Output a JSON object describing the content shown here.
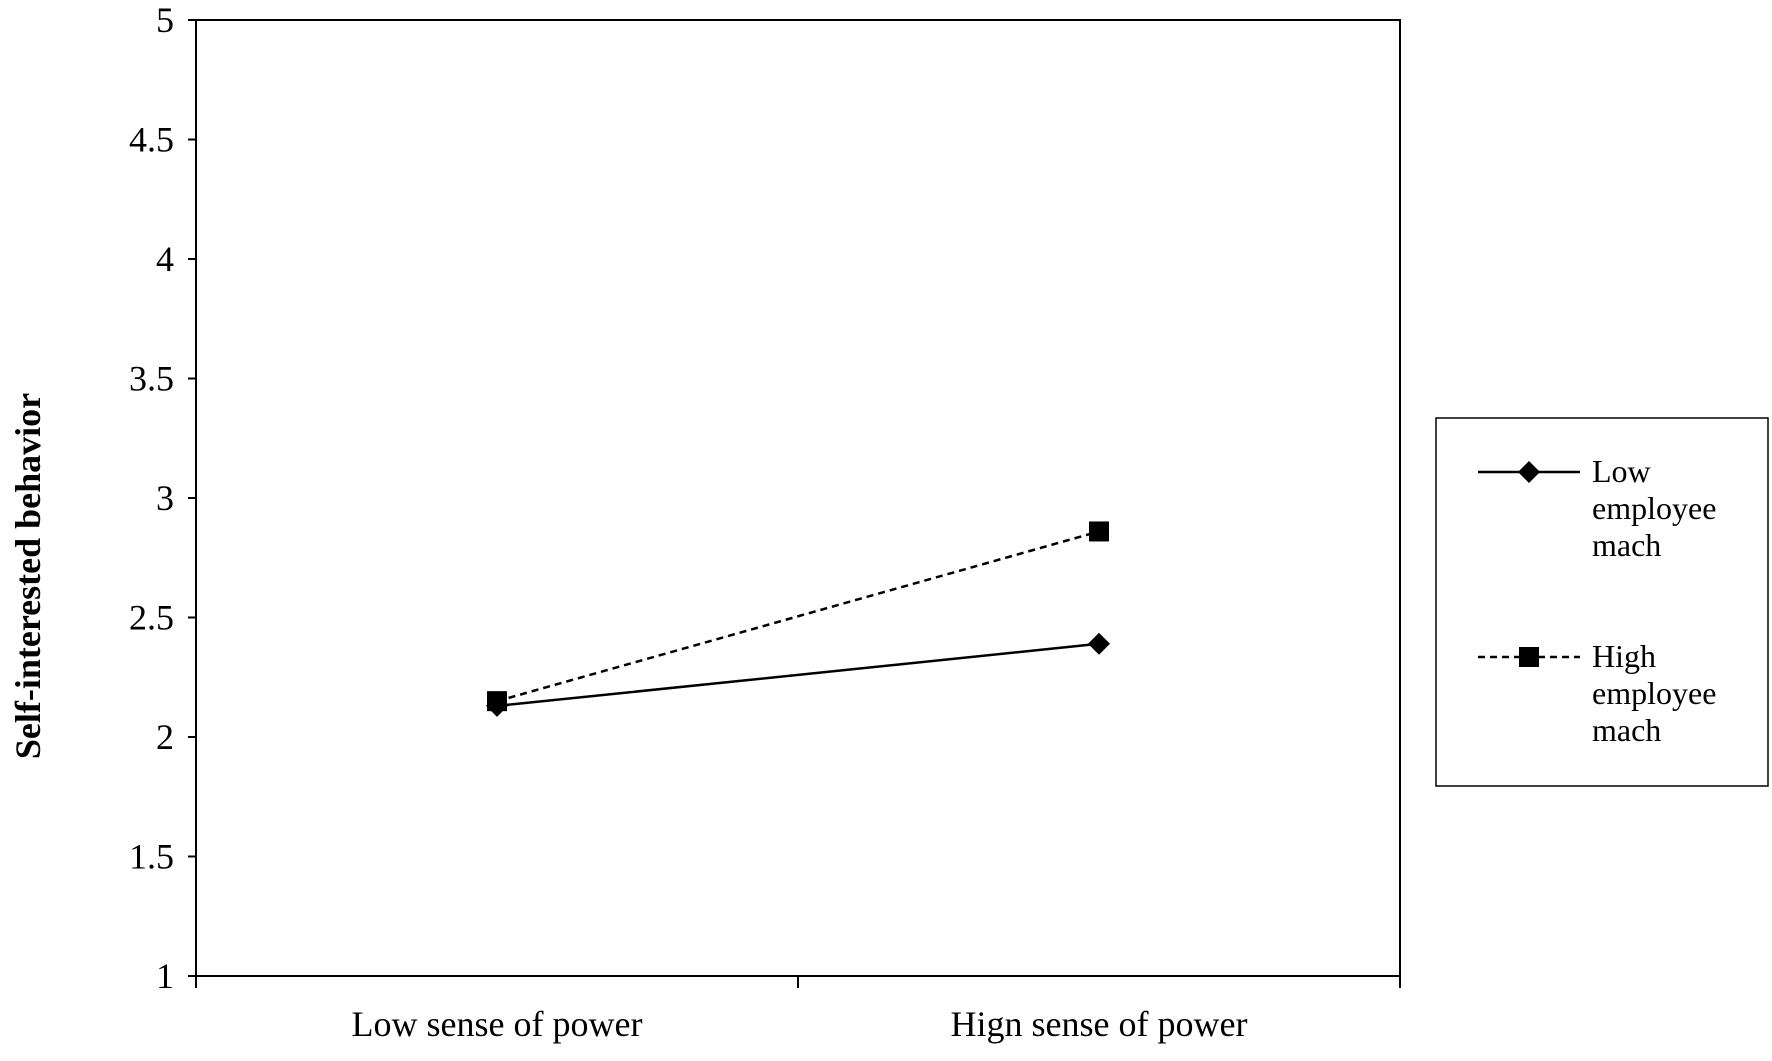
{
  "chart_data": {
    "type": "line",
    "title": "",
    "xlabel": "",
    "ylabel": "Self-interested  behavior",
    "categories": [
      "Low sense of power",
      "Hign sense of power"
    ],
    "ylim": [
      1,
      5
    ],
    "yticks": [
      "1",
      "1.5",
      "2",
      "2.5",
      "3",
      "3.5",
      "4",
      "4.5",
      "5"
    ],
    "grid": false,
    "legend_position": "right",
    "series": [
      {
        "name": "Low employee mach",
        "name_lines": [
          "Low",
          "employee",
          "mach"
        ],
        "values": [
          2.13,
          2.39
        ],
        "marker": "diamond",
        "line_style": "solid",
        "color": "#000000"
      },
      {
        "name": "High employee mach",
        "name_lines": [
          "High",
          "employee",
          "mach"
        ],
        "values": [
          2.15,
          2.86
        ],
        "marker": "square",
        "line_style": "dashed",
        "color": "#000000"
      }
    ]
  }
}
